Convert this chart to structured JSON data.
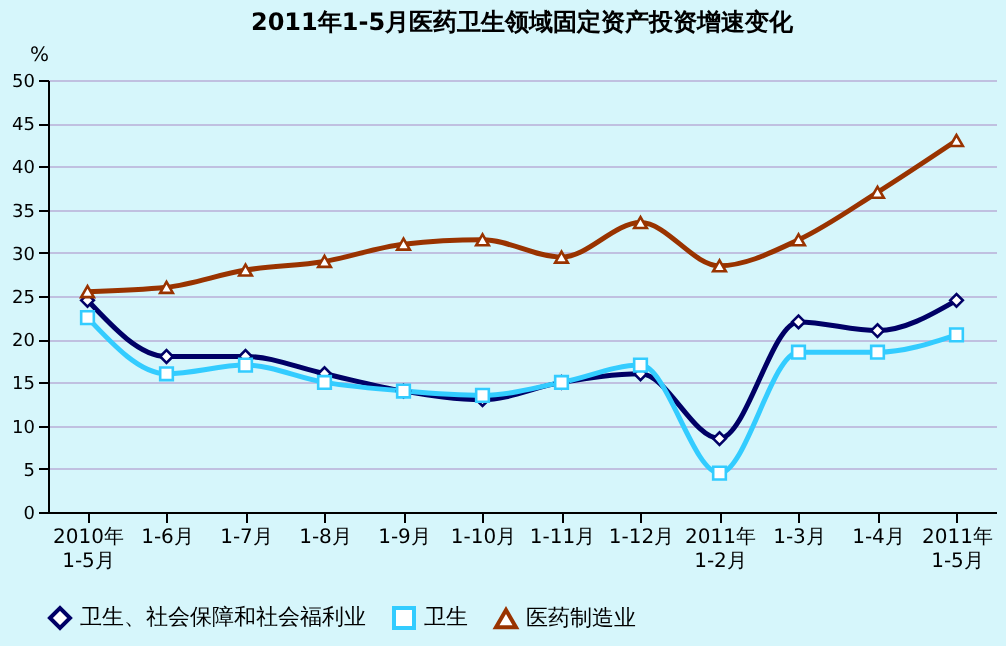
{
  "chart_data": {
    "type": "line",
    "title": "2011年1-5月医药卫生领域固定资产投资增速变化",
    "ylabel": "%",
    "categories": [
      "2010年\n1-5月",
      "1-6月",
      "1-7月",
      "1-8月",
      "1-9月",
      "1-10月",
      "1-11月",
      "1-12月",
      "2011年\n1-2月",
      "1-3月",
      "1-4月",
      "2011年\n1-5月"
    ],
    "series": [
      {
        "name": "卫生、社会保障和社会福利业",
        "color": "#000066",
        "marker": "diamond",
        "values": [
          24.5,
          18,
          18,
          16,
          14,
          13,
          15,
          16,
          8.5,
          22,
          21,
          24.5
        ]
      },
      {
        "name": "卫生",
        "color": "#33ccff",
        "marker": "square",
        "values": [
          22.5,
          16,
          17,
          15,
          14,
          13.5,
          15,
          17,
          4.5,
          18.5,
          18.5,
          20.5
        ]
      },
      {
        "name": "医药制造业",
        "color": "#993300",
        "marker": "triangle",
        "values": [
          25.5,
          26,
          28,
          29,
          31,
          31.5,
          29.5,
          33.5,
          28.5,
          31.5,
          37,
          43
        ]
      }
    ],
    "ylim": [
      0,
      50
    ],
    "yticks": [
      0,
      5,
      10,
      15,
      20,
      25,
      30,
      35,
      40,
      45,
      50
    ],
    "grid": "y",
    "legend": "bottom",
    "line_style": "solid"
  }
}
